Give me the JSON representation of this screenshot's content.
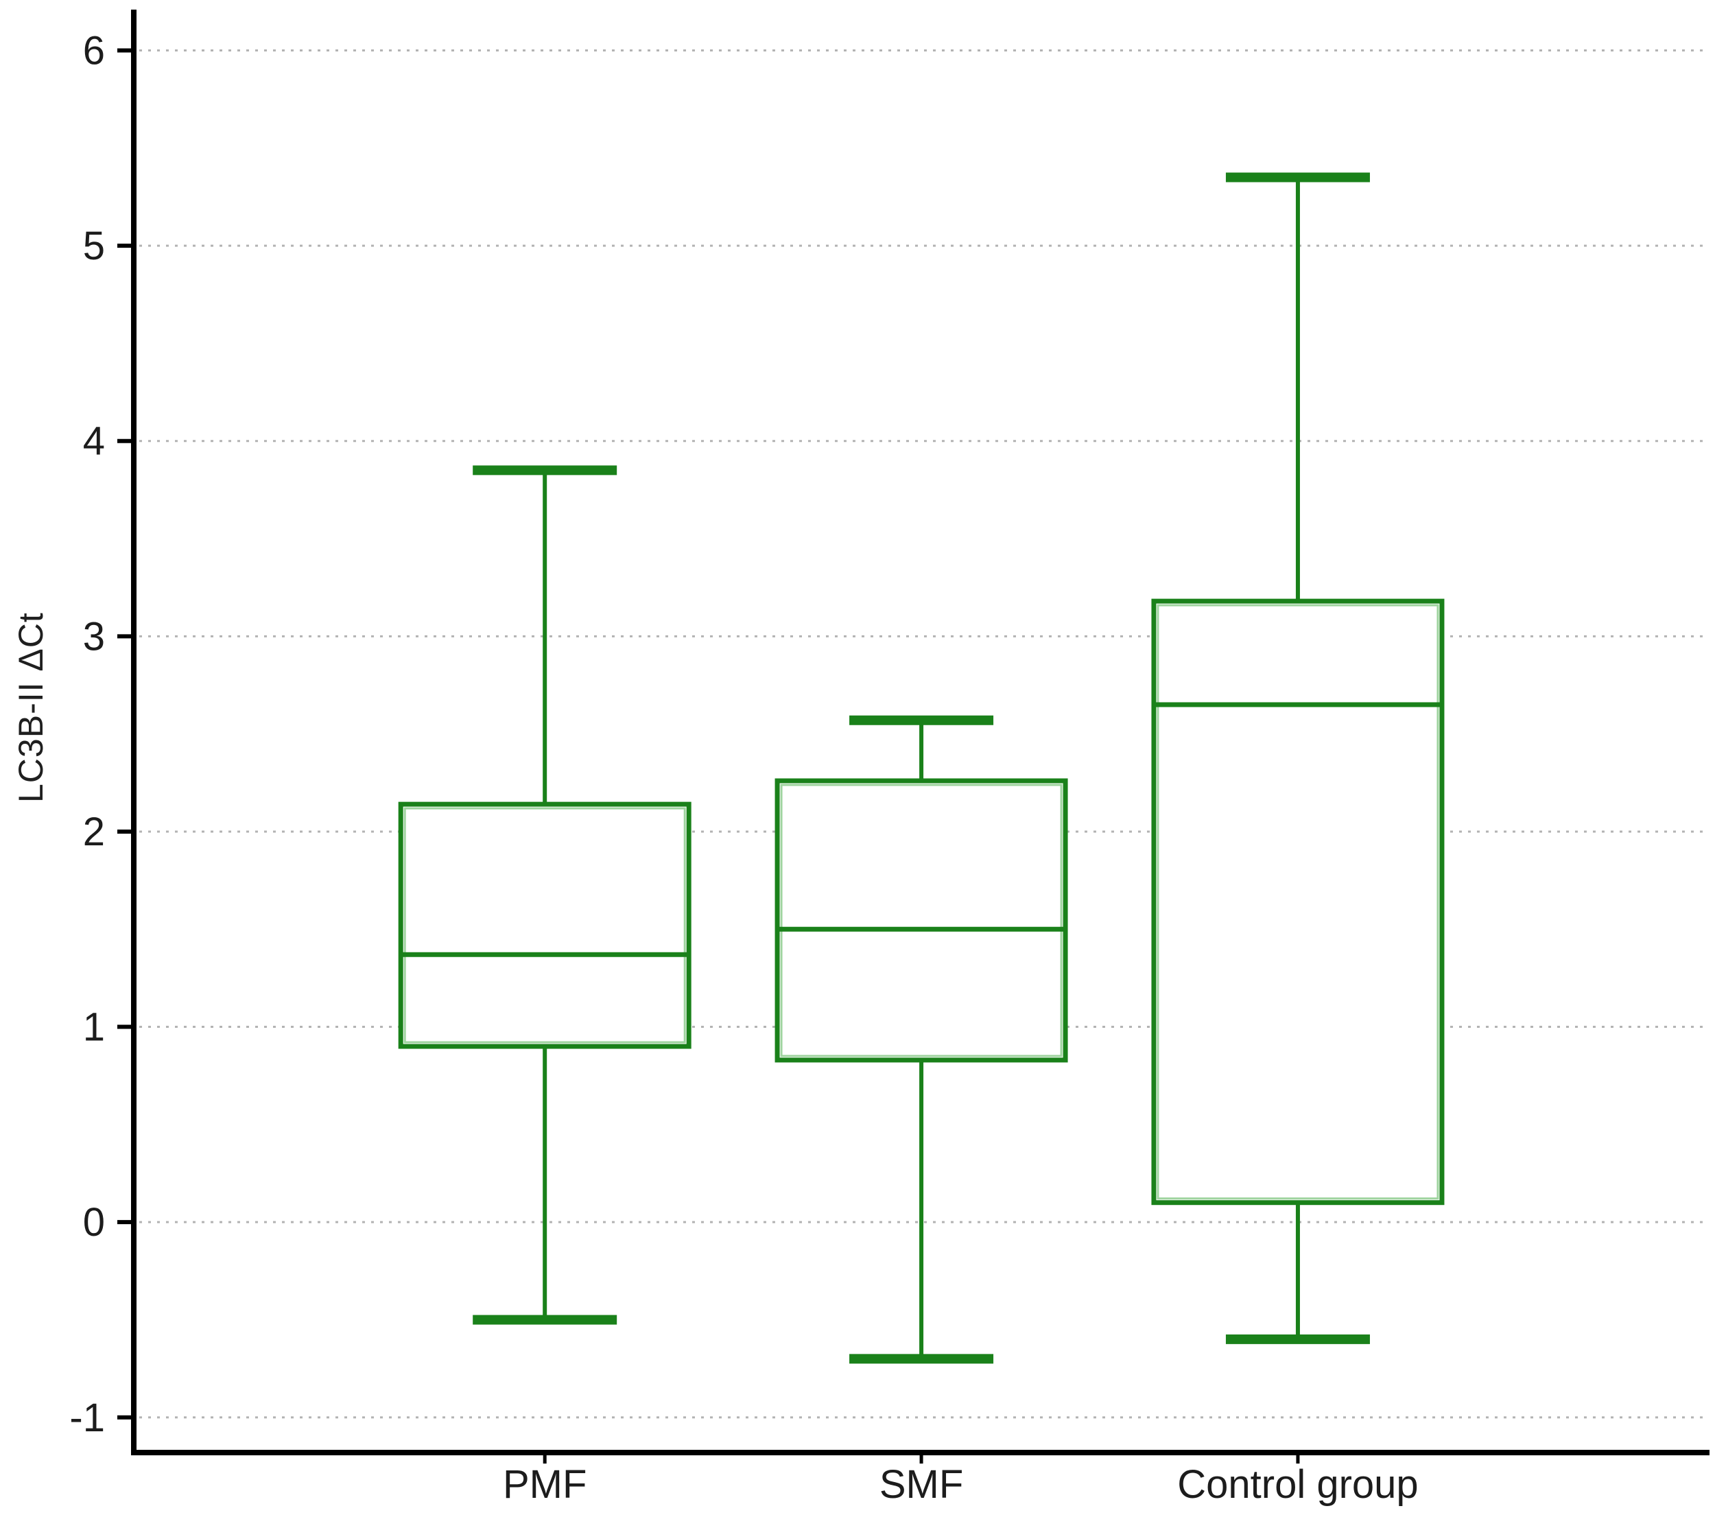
{
  "chart_data": {
    "type": "boxplot",
    "title": "",
    "xlabel": "",
    "ylabel": "LC3B-II ΔCt",
    "categories": [
      "PMF",
      "SMF",
      "Control group"
    ],
    "yticks": [
      -1,
      0,
      1,
      2,
      3,
      4,
      5,
      6
    ],
    "ylim": [
      -1.18,
      6.16
    ],
    "grid": "horizontal-dotted",
    "legend": "none",
    "colors": {
      "box": "#1a811a",
      "box_highlight": "#9fd49f",
      "grid": "#b3b3b3",
      "axis": "#000000",
      "text": "#1c1c1c"
    },
    "series": [
      {
        "name": "PMF",
        "whisker_low": -0.5,
        "q1": 0.9,
        "median": 1.37,
        "q3": 2.14,
        "whisker_high": 3.85
      },
      {
        "name": "SMF",
        "whisker_low": -0.7,
        "q1": 0.83,
        "median": 1.5,
        "q3": 2.26,
        "whisker_high": 2.57
      },
      {
        "name": "Control group",
        "whisker_low": -0.6,
        "q1": 0.1,
        "median": 2.65,
        "q3": 3.18,
        "whisker_high": 5.35
      }
    ]
  }
}
